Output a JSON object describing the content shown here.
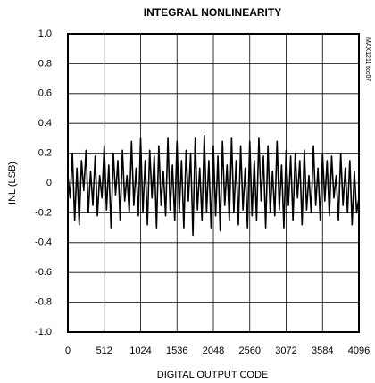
{
  "chart_data": {
    "type": "line",
    "title": "INTEGRAL NONLINEARITY",
    "xlabel": "DIGITAL OUTPUT CODE",
    "ylabel": "INL (LSB)",
    "annotation": "MAX1211 toc07",
    "color": "#000000",
    "grid": true,
    "xlim": [
      0,
      4096
    ],
    "ylim": [
      -1,
      1
    ],
    "xticks": [
      0,
      512,
      1024,
      1536,
      2048,
      2560,
      3072,
      3584,
      4096
    ],
    "yticks": [
      {
        "value": -1,
        "label": "-1.0"
      },
      -0.8,
      -0.6,
      -0.4,
      -0.2,
      0,
      0.2,
      0.4,
      0.6,
      0.8,
      {
        "value": 1,
        "label": "1.0"
      }
    ],
    "x": [
      0,
      32,
      64,
      96,
      128,
      160,
      192,
      224,
      256,
      288,
      320,
      352,
      384,
      416,
      448,
      480,
      512,
      544,
      576,
      608,
      640,
      672,
      704,
      736,
      768,
      800,
      832,
      864,
      896,
      928,
      960,
      992,
      1024,
      1056,
      1088,
      1120,
      1152,
      1184,
      1216,
      1248,
      1280,
      1312,
      1344,
      1376,
      1408,
      1440,
      1472,
      1504,
      1536,
      1568,
      1600,
      1632,
      1664,
      1696,
      1728,
      1760,
      1792,
      1824,
      1856,
      1888,
      1920,
      1952,
      1984,
      2016,
      2048,
      2080,
      2112,
      2144,
      2176,
      2208,
      2240,
      2272,
      2304,
      2336,
      2368,
      2400,
      2432,
      2464,
      2496,
      2528,
      2560,
      2592,
      2624,
      2656,
      2688,
      2720,
      2752,
      2784,
      2816,
      2848,
      2880,
      2912,
      2944,
      2976,
      3008,
      3040,
      3072,
      3104,
      3136,
      3168,
      3200,
      3232,
      3264,
      3296,
      3328,
      3360,
      3392,
      3424,
      3456,
      3488,
      3520,
      3552,
      3584,
      3616,
      3648,
      3680,
      3712,
      3744,
      3776,
      3808,
      3840,
      3872,
      3904,
      3936,
      3968,
      4000,
      4032,
      4064,
      4096
    ],
    "values": [
      0.05,
      -0.1,
      0.2,
      -0.25,
      0.1,
      -0.28,
      0.15,
      -0.05,
      0.22,
      -0.2,
      0.08,
      -0.15,
      0.18,
      -0.22,
      0.05,
      -0.1,
      0.25,
      -0.18,
      0.12,
      -0.3,
      0.2,
      -0.08,
      0.15,
      -0.25,
      0.22,
      -0.12,
      0.05,
      -0.2,
      0.28,
      -0.15,
      0.1,
      -0.22,
      0.3,
      -0.2,
      0.15,
      -0.28,
      0.22,
      -0.1,
      0.18,
      -0.3,
      0.25,
      -0.15,
      0.08,
      -0.22,
      0.3,
      -0.18,
      0.12,
      -0.25,
      0.28,
      -0.2,
      0.15,
      -0.3,
      0.22,
      -0.12,
      0.2,
      -0.35,
      0.3,
      -0.18,
      0.1,
      -0.25,
      0.32,
      -0.2,
      0.15,
      -0.3,
      0.25,
      -0.22,
      0.18,
      -0.32,
      0.28,
      -0.15,
      0.12,
      -0.25,
      0.3,
      -0.2,
      0.15,
      -0.28,
      0.25,
      -0.18,
      0.1,
      -0.3,
      0.28,
      -0.22,
      0.15,
      -0.25,
      0.3,
      -0.12,
      0.18,
      -0.3,
      0.25,
      -0.2,
      0.08,
      -0.22,
      0.28,
      -0.18,
      0.12,
      -0.3,
      0.22,
      -0.15,
      0.18,
      -0.25,
      0.2,
      -0.1,
      0.15,
      -0.28,
      0.22,
      -0.18,
      0.05,
      -0.2,
      0.25,
      -0.15,
      0.1,
      -0.25,
      0.2,
      -0.12,
      0.15,
      -0.22,
      0.18,
      -0.1,
      0.05,
      -0.25,
      0.2,
      -0.15,
      0.1,
      -0.2,
      0.15,
      -0.28,
      0.08,
      -0.2,
      -0.1
    ]
  }
}
